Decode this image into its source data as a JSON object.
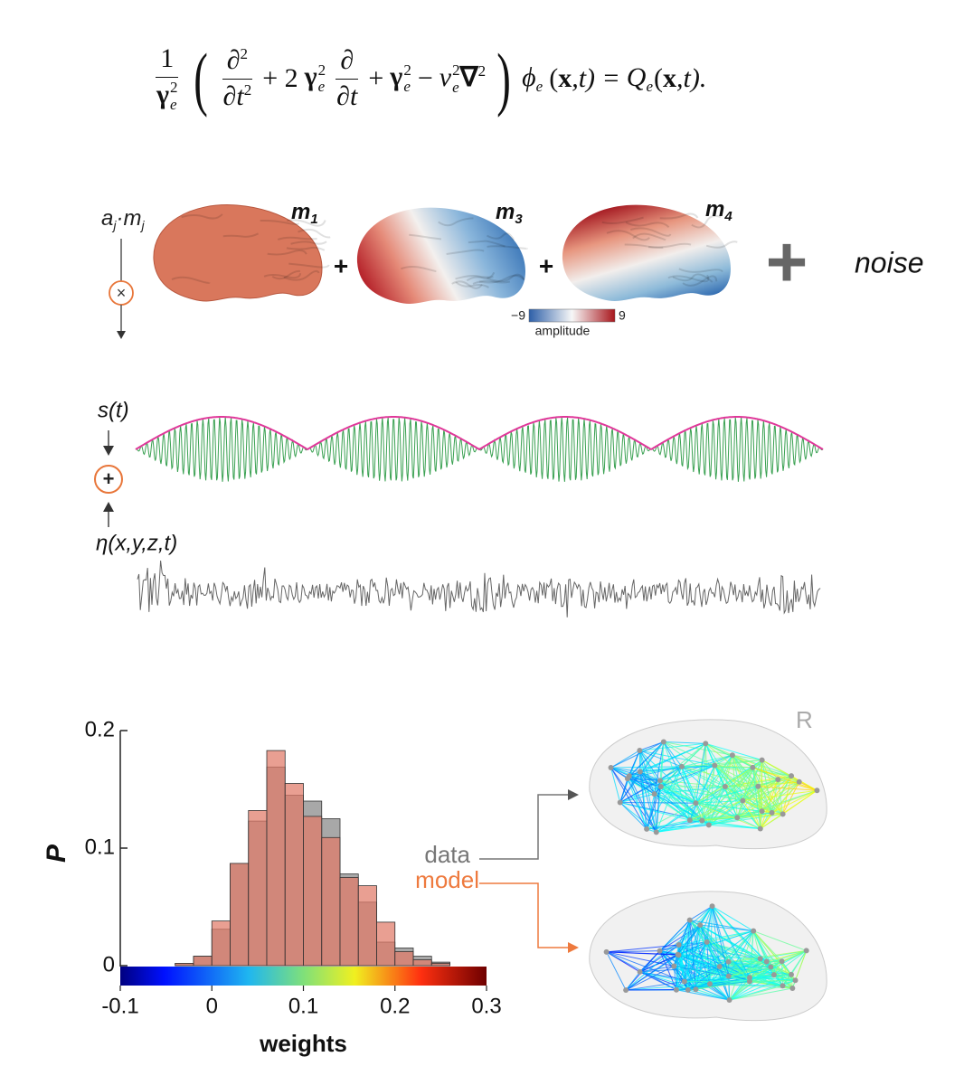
{
  "equation": {
    "frac1": {
      "num": "1",
      "den": "γ",
      "den_sup": "2",
      "den_sub": "e"
    },
    "paren_open": "(",
    "frac2": {
      "num": "∂",
      "num_sup": "2",
      "den": "∂t",
      "den_sup": "2"
    },
    "plus_two": "+ 2",
    "gamma_a": {
      "base": "γ",
      "sup": "2",
      "sub": "e"
    },
    "frac3": {
      "num": "∂",
      "den": "∂t"
    },
    "plus": "+",
    "gamma_b": {
      "base": "γ",
      "sup": "2",
      "sub": "e"
    },
    "minus": "−",
    "nu": {
      "base": "ν",
      "sup": "2",
      "sub": "e"
    },
    "nabla": {
      "base": "∇",
      "sup": "2"
    },
    "paren_close": ")",
    "phi": {
      "base": "ϕ",
      "sub": "e"
    },
    "lhs_args": {
      "open": "(",
      "x": "x",
      "rest": ",t) ="
    },
    "Q": {
      "base": "Q",
      "sub": "e"
    },
    "rhs_args": {
      "open": "(",
      "x": "x",
      "rest": ",t)."
    }
  },
  "modes": {
    "coef": {
      "a": "a",
      "a_sub": "j",
      "dot_m": "·m",
      "m_sub": "j"
    },
    "multiply": "×",
    "terms": [
      {
        "m": "m",
        "sub": "1"
      },
      {
        "m": "m",
        "sub": "3"
      },
      {
        "m": "m",
        "sub": "4"
      }
    ],
    "plus_signs": [
      "+",
      "+"
    ],
    "big_plus": "+",
    "noise": "noise",
    "colorbar": {
      "min": "−9",
      "max": "9",
      "label": "amplitude"
    }
  },
  "signals": {
    "signal": "s(t)",
    "add": "+",
    "noise": "η(x,y,z,t)"
  },
  "networks": {
    "label": "R"
  },
  "chart_data": {
    "type": "histogram",
    "xlabel": "weights",
    "ylabel": "P",
    "bins": [
      -0.04,
      -0.02,
      0,
      0.02,
      0.04,
      0.06,
      0.08,
      0.1,
      0.12,
      0.14,
      0.16,
      0.18,
      0.2,
      0.22,
      0.24,
      0.26
    ],
    "series": [
      {
        "name": "data",
        "color": "#a8a8a8",
        "values": [
          0.002,
          0.008,
          0.031,
          0.087,
          0.123,
          0.169,
          0.145,
          0.14,
          0.125,
          0.078,
          0.054,
          0.02,
          0.015,
          0.008,
          0.003
        ]
      },
      {
        "name": "model",
        "color": "#e07a68",
        "values": [
          0.002,
          0.008,
          0.038,
          0.087,
          0.132,
          0.183,
          0.155,
          0.127,
          0.109,
          0.075,
          0.068,
          0.037,
          0.012,
          0.005,
          0.002
        ]
      }
    ],
    "xlim": [
      -0.1,
      0.3
    ],
    "xticks": [
      -0.1,
      0,
      0.1,
      0.2,
      0.3
    ],
    "ylim": [
      0,
      0.2
    ],
    "yticks": [
      0,
      0.1,
      0.2
    ]
  }
}
